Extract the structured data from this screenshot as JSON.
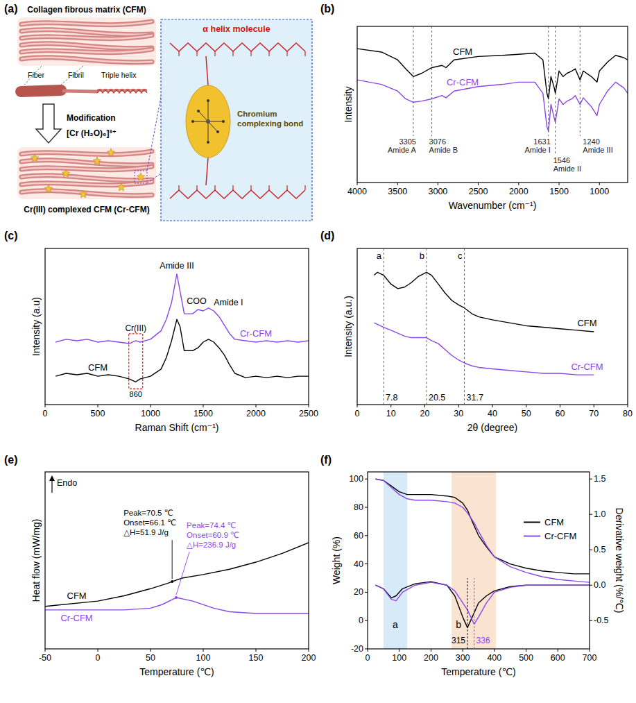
{
  "diagram": {
    "panel_label": "(a)",
    "top_title": "Collagen fibrous matrix (CFM)",
    "fiber": "Fiber",
    "fibril": "Fibril",
    "triple_helix": "Triple helix",
    "modification": "Modification",
    "reagent": "[Cr (H₂O)₆]³⁺",
    "bottom_title": "Cr(III) complexed CFM (Cr-CFM)",
    "molecule": "α helix molecule",
    "bond": "Chromium complexing bond"
  },
  "chart_data": [
    {
      "type": "line",
      "panel_label": "(b)",
      "x_label": "Wavenumber (cm⁻¹)",
      "y_label": "Intensity",
      "xlim": [
        4000,
        650
      ],
      "xticks": [
        4000,
        3500,
        3000,
        2500,
        2000,
        1500,
        1000
      ],
      "ylim": [
        -40,
        100
      ],
      "tick_labels": "x",
      "grid": false,
      "series": [
        {
          "name": "CFM",
          "color": "#000000",
          "x": [
            4000,
            3700,
            3500,
            3400,
            3305,
            3200,
            3076,
            2950,
            2900,
            2800,
            2500,
            2200,
            2000,
            1800,
            1700,
            1650,
            1631,
            1600,
            1560,
            1546,
            1500,
            1450,
            1400,
            1340,
            1300,
            1240,
            1200,
            1100,
            1030,
            1000,
            900,
            800,
            700,
            650
          ],
          "values": [
            80,
            77,
            70,
            62,
            55,
            58,
            63,
            65,
            63,
            70,
            73,
            74,
            75,
            76,
            70,
            40,
            35,
            55,
            45,
            40,
            60,
            55,
            58,
            60,
            62,
            52,
            60,
            55,
            50,
            60,
            68,
            74,
            72,
            70
          ]
        },
        {
          "name": "Cr-CFM",
          "color": "#8a46e6",
          "x": [
            4000,
            3700,
            3500,
            3400,
            3305,
            3200,
            3076,
            2950,
            2900,
            2800,
            2500,
            2200,
            2000,
            1800,
            1700,
            1650,
            1631,
            1600,
            1560,
            1546,
            1500,
            1450,
            1400,
            1340,
            1300,
            1240,
            1200,
            1100,
            1030,
            1000,
            900,
            800,
            700,
            650
          ],
          "values": [
            52,
            48,
            42,
            35,
            32,
            33,
            35,
            38,
            36,
            42,
            46,
            48,
            50,
            50,
            40,
            10,
            6,
            30,
            18,
            14,
            35,
            30,
            33,
            35,
            38,
            30,
            36,
            28,
            20,
            30,
            42,
            50,
            45,
            40
          ]
        }
      ],
      "annotations": [
        {
          "x": 3305,
          "text": "Amide A"
        },
        {
          "x": 3076,
          "text": "Amide B"
        },
        {
          "x": 1631,
          "text": "Amide I"
        },
        {
          "x": 1546,
          "text": "Amide II"
        },
        {
          "x": 1240,
          "text": "Amide III"
        }
      ]
    },
    {
      "type": "line",
      "panel_label": "(c)",
      "x_label": "Raman Shift (cm⁻¹)",
      "y_label": "Intensity (a.u)",
      "xlim": [
        0,
        2500
      ],
      "xticks": [
        0,
        500,
        1000,
        1500,
        2000,
        2500
      ],
      "ylim": [
        0,
        110
      ],
      "tick_labels": "x",
      "grid": false,
      "series": [
        {
          "name": "CFM",
          "color": "#000000",
          "x": [
            100,
            200,
            300,
            400,
            500,
            600,
            700,
            800,
            860,
            900,
            1000,
            1100,
            1150,
            1200,
            1250,
            1280,
            1320,
            1400,
            1450,
            1500,
            1550,
            1600,
            1650,
            1700,
            1750,
            1800,
            1900,
            2000,
            2100,
            2200,
            2300,
            2400,
            2500
          ],
          "values": [
            20,
            22,
            21,
            22,
            20,
            21,
            20,
            18,
            16,
            18,
            20,
            25,
            33,
            45,
            60,
            55,
            38,
            38,
            40,
            44,
            46,
            44,
            40,
            35,
            28,
            22,
            19,
            20,
            19,
            20,
            19,
            20,
            20
          ]
        },
        {
          "name": "Cr-CFM",
          "color": "#8a46e6",
          "x": [
            100,
            200,
            300,
            400,
            500,
            600,
            700,
            800,
            860,
            900,
            1000,
            1100,
            1150,
            1200,
            1250,
            1280,
            1320,
            1400,
            1450,
            1500,
            1550,
            1600,
            1650,
            1700,
            1750,
            1800,
            1900,
            2000,
            2100,
            2200,
            2300,
            2400,
            2500
          ],
          "values": [
            44,
            46,
            45,
            46,
            44,
            45,
            44,
            43,
            45,
            44,
            46,
            52,
            60,
            72,
            92,
            80,
            64,
            64,
            67,
            66,
            68,
            66,
            62,
            56,
            50,
            46,
            45,
            44,
            45,
            44,
            45,
            44,
            45
          ]
        }
      ],
      "annotations": [
        {
          "x": 1250,
          "text": "Amide III"
        },
        {
          "x": 1450,
          "text": "COO"
        },
        {
          "x": 1600,
          "text": "Amide I"
        }
      ],
      "highlight": {
        "x": 860,
        "text": "Cr(III)",
        "color": "#e0302a"
      }
    },
    {
      "type": "line",
      "panel_label": "(d)",
      "x_label": "2θ (degree)",
      "y_label": "Intensity (a.u.)",
      "xlim": [
        0,
        80
      ],
      "xticks": [
        0,
        10,
        20,
        30,
        40,
        50,
        60,
        70,
        80
      ],
      "ylim": [
        -15,
        90
      ],
      "tick_labels": "x",
      "grid": false,
      "series": [
        {
          "name": "CFM",
          "color": "#000000",
          "x": [
            5,
            6,
            7.8,
            10,
            12,
            14,
            16,
            18,
            20.5,
            22,
            24,
            26,
            28,
            30,
            31.7,
            34,
            36,
            40,
            45,
            50,
            55,
            60,
            65,
            70
          ],
          "values": [
            72,
            74,
            72,
            66,
            63,
            64,
            67,
            71,
            74,
            72,
            66,
            60,
            55,
            52,
            50,
            46,
            44,
            42,
            40,
            38,
            37,
            36,
            35,
            34
          ]
        },
        {
          "name": "Cr-CFM",
          "color": "#8a46e6",
          "x": [
            5,
            6,
            7.8,
            10,
            12,
            14,
            16,
            18,
            20.5,
            22,
            24,
            26,
            28,
            30,
            31.7,
            34,
            36,
            40,
            45,
            50,
            55,
            60,
            65,
            70
          ],
          "values": [
            40,
            39,
            37,
            35,
            33,
            31,
            30,
            30,
            30,
            28,
            26,
            22,
            18,
            15,
            13,
            11,
            10,
            9,
            8,
            7,
            6,
            6,
            5,
            5
          ]
        }
      ],
      "annotations": [
        {
          "x": 7.8,
          "text": "a"
        },
        {
          "x": 20.5,
          "text": "b"
        },
        {
          "x": 31.7,
          "text": "c"
        }
      ]
    },
    {
      "type": "line",
      "panel_label": "(e)",
      "x_label": "Temperature (℃)",
      "y_label": "Heat flow (mW/mg)",
      "y_note": "Endo",
      "xlim": [
        -50,
        200
      ],
      "xticks": [
        -50,
        0,
        50,
        100,
        150,
        200
      ],
      "ylim": [
        0,
        100
      ],
      "tick_labels": "x",
      "grid": false,
      "series": [
        {
          "name": "CFM",
          "color": "#000000",
          "x": [
            -50,
            0,
            25,
            50,
            66.1,
            70.5,
            80,
            100,
            125,
            150,
            175,
            200
          ],
          "values": [
            24,
            27,
            30,
            34,
            37,
            38,
            40,
            42,
            45,
            49,
            54,
            60
          ]
        },
        {
          "name": "Cr-CFM",
          "color": "#8a46e6",
          "x": [
            -50,
            0,
            25,
            50,
            60.9,
            74.4,
            90,
            110,
            125,
            150,
            175,
            200
          ],
          "values": [
            22,
            22,
            22,
            23,
            25,
            29,
            27,
            23,
            21,
            20,
            20,
            20
          ]
        }
      ],
      "annotations": [
        {
          "x": 70.5,
          "color": "#000000",
          "lines": [
            "Peak=70.5 ℃",
            "Onset=66.1 ℃",
            "△H=51.9 J/g"
          ]
        },
        {
          "x": 74.4,
          "color": "#8a46e6",
          "lines": [
            "Peak=74.4 ℃",
            "Onset=60.9 ℃",
            "△H=236.9 J/g"
          ]
        }
      ]
    },
    {
      "type": "line",
      "panel_label": "(f)",
      "x_label": "Temperature (℃)",
      "y_label": "Weight (%)",
      "y2_label": "Derivative weight (%/℃)",
      "xlim": [
        0,
        700
      ],
      "xticks": [
        0,
        100,
        200,
        300,
        400,
        500,
        600,
        700
      ],
      "ylim": [
        -20,
        105
      ],
      "yticks": [
        -20,
        0,
        20,
        40,
        60,
        80,
        100
      ],
      "y2lim": [
        -0.9,
        1.6
      ],
      "y2ticks": [
        -0.5,
        {
          "value": 0,
          "label": "0.0"
        },
        0.5,
        {
          "value": 1,
          "label": "1.0"
        },
        1.5
      ],
      "grid": false,
      "legend": "right",
      "series": [
        {
          "name": "CFM",
          "color": "#000000",
          "x": [
            25,
            50,
            75,
            100,
            125,
            150,
            200,
            250,
            275,
            300,
            315,
            330,
            350,
            375,
            400,
            450,
            500,
            550,
            600,
            650,
            700
          ],
          "values": [
            100,
            99,
            95,
            91,
            89,
            89,
            89,
            88,
            87,
            83,
            78,
            70,
            60,
            52,
            45,
            40,
            37,
            35,
            34,
            33,
            33
          ]
        },
        {
          "name": "Cr-CFM",
          "color": "#8a46e6",
          "x": [
            25,
            50,
            75,
            100,
            125,
            150,
            200,
            250,
            275,
            300,
            315,
            336,
            350,
            375,
            400,
            450,
            500,
            550,
            600,
            650,
            700
          ],
          "values": [
            100,
            99,
            94,
            89,
            86,
            85,
            85,
            84,
            83,
            80,
            76,
            69,
            63,
            53,
            45,
            38,
            34,
            31,
            29,
            28,
            27
          ]
        },
        {
          "color": "#000000",
          "axis": "y2",
          "x": [
            25,
            50,
            75,
            90,
            110,
            150,
            200,
            250,
            275,
            300,
            315,
            330,
            350,
            375,
            400,
            450,
            500,
            600,
            700
          ],
          "values": [
            0,
            -0.05,
            -0.18,
            -0.15,
            -0.05,
            0.02,
            0.05,
            0,
            -0.15,
            -0.45,
            -0.6,
            -0.45,
            -0.25,
            -0.15,
            -0.08,
            -0.02,
            0,
            0,
            0
          ]
        },
        {
          "color": "#8a46e6",
          "axis": "y2",
          "x": [
            25,
            50,
            75,
            90,
            110,
            150,
            200,
            250,
            275,
            300,
            315,
            336,
            350,
            375,
            400,
            450,
            500,
            600,
            700
          ],
          "values": [
            0,
            -0.05,
            -0.2,
            -0.22,
            -0.1,
            0,
            0.04,
            0,
            -0.08,
            -0.25,
            -0.35,
            -0.55,
            -0.45,
            -0.25,
            -0.1,
            -0.03,
            0,
            0,
            0
          ]
        }
      ],
      "regions": [
        {
          "x": [
            50,
            125
          ],
          "label": "a",
          "color": "#d6eaf8"
        },
        {
          "x": [
            265,
            405
          ],
          "label": "b",
          "color": "#fbe3d2"
        }
      ],
      "annotations": [
        {
          "x": 315,
          "color": "#000000"
        },
        {
          "x": 336,
          "color": "#8a46e6"
        }
      ]
    }
  ]
}
